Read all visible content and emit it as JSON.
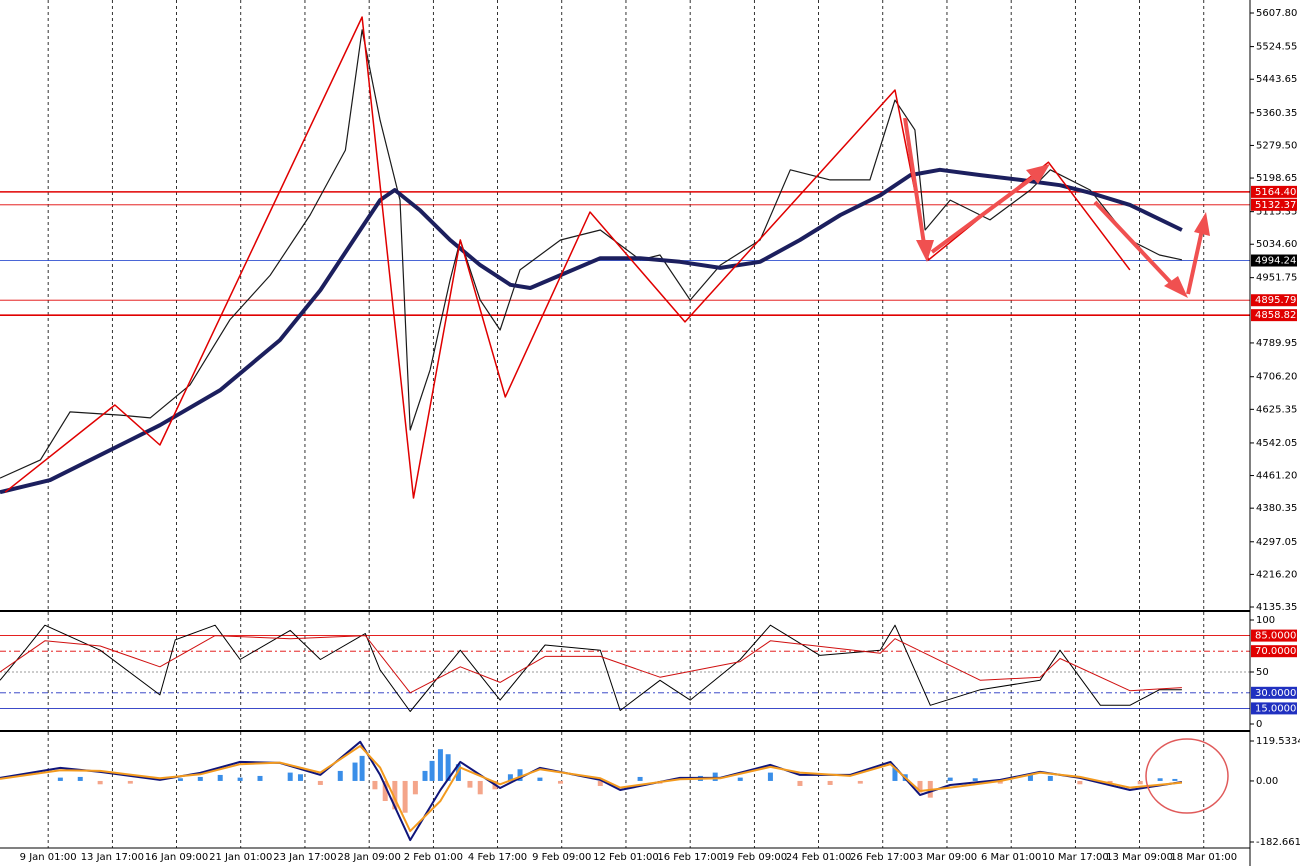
{
  "chart_data": [
    {
      "type": "line",
      "ylim": [
        4135.35,
        5607.8
      ],
      "yticks": [
        {
          "value": 5607.8,
          "label": "5607.80"
        },
        {
          "value": 5524.55,
          "label": "5524.55"
        },
        {
          "value": 5443.65,
          "label": "5443.65"
        },
        {
          "value": 5360.35,
          "label": "5360.35"
        },
        {
          "value": 5279.5,
          "label": "5279.50"
        },
        {
          "value": 5198.65,
          "label": "5198.65"
        },
        {
          "value": 5115.35,
          "label": "5115.35"
        },
        {
          "value": 5034.6,
          "label": "5034.60"
        },
        {
          "value": 4951.75,
          "label": "4951.75"
        },
        {
          "value": 4789.95,
          "label": "4789.95"
        },
        {
          "value": 4706.2,
          "label": "4706.20"
        },
        {
          "value": 4625.35,
          "label": "4625.35"
        },
        {
          "value": 4542.05,
          "label": "4542.05"
        },
        {
          "value": 4461.2,
          "label": "4461.20"
        },
        {
          "value": 4380.35,
          "label": "4380.35"
        },
        {
          "value": 4297.05,
          "label": "4297.05"
        },
        {
          "value": 4216.2,
          "label": "4216.20"
        },
        {
          "value": 4135.35,
          "label": "4135.35"
        }
      ],
      "levels": [
        {
          "value": 5164.4,
          "label": "5164.40",
          "color": "#e00000"
        },
        {
          "value": 5132.37,
          "label": "5132.37",
          "color": "#e00000"
        },
        {
          "value": 4994.24,
          "label": "4994.24",
          "color": "#3050d0"
        },
        {
          "value": 4895.79,
          "label": "4895.79",
          "color": "#e00000"
        },
        {
          "value": 4858.82,
          "label": "4858.82",
          "color": "#e00000"
        }
      ],
      "series": [
        {
          "color": "#1a1a1a",
          "width": 1.2,
          "x": [
            -0.75,
            -0.12,
            0.34,
            1.12,
            1.59,
            2.21,
            2.83,
            3.46,
            4.08,
            4.63,
            4.89,
            5.17,
            5.48,
            5.64,
            5.95,
            6.26,
            6.42,
            6.73,
            7.04,
            7.35,
            7.98,
            8.6,
            9.22,
            9.53,
            10.0,
            10.47,
            11.09,
            11.56,
            12.18,
            12.8,
            13.19,
            13.5,
            13.66,
            14.05,
            14.67,
            15.3,
            15.61,
            16.23,
            16.85,
            17.31,
            17.66
          ],
          "values": [
            4455,
            4500,
            4619,
            4611,
            4604,
            4686,
            4847,
            4958,
            5107,
            5268,
            5566,
            5342,
            5144,
            4574,
            4723,
            4946,
            5045,
            4896,
            4822,
            4971,
            5045,
            5070,
            4996,
            5008,
            4896,
            4983,
            5045,
            5219,
            5194,
            5194,
            5392,
            5318,
            5070,
            5144,
            5095,
            5169,
            5219,
            5169,
            5045,
            5008,
            4996
          ]
        },
        {
          "color": "#1c1f5e",
          "width": 4,
          "x": [
            -0.75,
            0.03,
            0.81,
            1.74,
            2.68,
            3.61,
            4.24,
            4.86,
            5.17,
            5.4,
            5.79,
            6.26,
            6.73,
            7.2,
            7.51,
            7.98,
            8.6,
            9.22,
            9.84,
            10.47,
            11.09,
            11.71,
            12.34,
            12.96,
            13.43,
            13.89,
            14.52,
            15.14,
            15.76,
            16.23,
            16.85,
            17.66
          ],
          "values": [
            4420,
            4450,
            4512,
            4586,
            4673,
            4797,
            4921,
            5070,
            5144,
            5169,
            5119,
            5045,
            4983,
            4934,
            4926,
            4958,
            5000,
            5000,
            4991,
            4976,
            4991,
            5045,
            5107,
            5156,
            5206,
            5219,
            5206,
            5194,
            5181,
            5162,
            5132,
            5070
          ]
        },
        {
          "color": "#e00000",
          "width": 1.5,
          "x": [
            -0.67,
            1.04,
            1.74,
            4.89,
            5.69,
            6.42,
            7.12,
            8.44,
            9.92,
            13.19,
            13.71,
            15.58,
            16.85
          ],
          "values": [
            4420,
            4636,
            4537,
            5598,
            4405.5,
            5045,
            4656,
            5114.5,
            4842,
            5417,
            4995.5,
            5238,
            4971
          ]
        }
      ]
    },
    {
      "type": "line",
      "ylim": [
        0,
        100
      ],
      "yticks": [
        100,
        50,
        0
      ],
      "levels": [
        {
          "value": 85,
          "label": "85.0000",
          "color": "#e00000",
          "dash": "none"
        },
        {
          "value": 70,
          "label": "70.0000",
          "color": "#e00000",
          "dash": "6 3 2 3"
        },
        {
          "value": 30,
          "label": "30.0000",
          "color": "#2030c0",
          "dash": "6 3 2 3"
        },
        {
          "value": 15,
          "label": "15.0000",
          "color": "#2030c0",
          "dash": "none"
        }
      ],
      "series": [
        {
          "color": "#000000",
          "width": 1,
          "x": [
            -0.75,
            -0.36,
            -0.05,
            0.81,
            1.74,
            1.98,
            2.6,
            2.99,
            3.77,
            4.24,
            4.94,
            5.17,
            5.64,
            6.42,
            7.04,
            7.74,
            8.6,
            8.91,
            9.53,
            10.0,
            10.78,
            11.25,
            12.02,
            12.96,
            13.19,
            13.74,
            14.52,
            15.45,
            15.76,
            16.39,
            16.85,
            17.31,
            17.66
          ],
          "values": [
            42,
            71,
            95,
            71,
            28,
            81,
            95,
            62,
            90,
            62,
            87,
            52,
            12,
            71,
            23,
            76,
            71,
            13,
            42,
            23,
            62,
            95,
            66,
            71,
            95,
            18,
            33,
            42,
            71,
            18,
            18,
            33,
            33
          ]
        },
        {
          "color": "#d01010",
          "width": 1,
          "x": [
            -0.75,
            -0.05,
            0.81,
            1.74,
            2.6,
            3.77,
            4.94,
            5.64,
            6.42,
            7.04,
            7.74,
            8.6,
            9.53,
            10.78,
            11.25,
            12.96,
            13.19,
            14.52,
            15.45,
            15.76,
            16.85,
            17.66
          ],
          "values": [
            50,
            80,
            75,
            55,
            85,
            82,
            85,
            30,
            55,
            40,
            65,
            65,
            45,
            60,
            80,
            68,
            82,
            42,
            45,
            63,
            32,
            35
          ]
        }
      ]
    },
    {
      "type": "combo",
      "ylim": [
        -182.6615,
        119.5334
      ],
      "yticks": [
        119.5334,
        {
          "value": 0,
          "label": "0.00"
        },
        -182.6615
      ],
      "xlim": [
        -0.75,
        18.72
      ],
      "xticks": [
        {
          "value": 0,
          "label": "9 Jan 01:00"
        },
        {
          "value": 1,
          "label": "13 Jan 17:00"
        },
        {
          "value": 2,
          "label": "16 Jan 09:00"
        },
        {
          "value": 3,
          "label": "21 Jan 01:00"
        },
        {
          "value": 4,
          "label": "23 Jan 17:00"
        },
        {
          "value": 5,
          "label": "28 Jan 09:00"
        },
        {
          "value": 6,
          "label": "2 Feb 01:00"
        },
        {
          "value": 7,
          "label": "4 Feb 17:00"
        },
        {
          "value": 8,
          "label": "9 Feb 09:00"
        },
        {
          "value": 9,
          "label": "12 Feb 01:00"
        },
        {
          "value": 10,
          "label": "16 Feb 17:00"
        },
        {
          "value": 11,
          "label": "19 Feb 09:00"
        },
        {
          "value": 12,
          "label": "24 Feb 01:00"
        },
        {
          "value": 13,
          "label": "26 Feb 17:00"
        },
        {
          "value": 14,
          "label": "3 Mar 09:00"
        },
        {
          "value": 15,
          "label": "6 Mar 01:00"
        },
        {
          "value": 16,
          "label": "10 Mar 17:00"
        },
        {
          "value": 17,
          "label": "13 Mar 09:00"
        },
        {
          "value": 18,
          "label": "18 Mar 01:00"
        }
      ],
      "histogram": {
        "color": "#3a8ee8",
        "negative_color": "#f4a58a",
        "x": [
          0.19,
          0.5,
          0.81,
          1.28,
          2.06,
          2.37,
          2.68,
          2.99,
          3.3,
          3.77,
          3.93,
          4.24,
          4.55,
          4.78,
          4.89,
          5.09,
          5.25,
          5.4,
          5.56,
          5.72,
          5.87,
          5.98,
          6.11,
          6.23,
          6.39,
          6.57,
          6.73,
          6.96,
          7.2,
          7.35,
          7.66,
          7.98,
          8.6,
          9.22,
          9.53,
          10.16,
          10.39,
          10.78,
          11.25,
          11.71,
          12.18,
          12.65,
          13.19,
          13.35,
          13.58,
          13.74,
          14.05,
          14.44,
          14.83,
          15.3,
          15.61,
          16.07,
          16.54,
          17.01,
          17.32,
          17.55
        ],
        "values": [
          10,
          12,
          -10,
          -8,
          8,
          12,
          18,
          10,
          15,
          25,
          20,
          -12,
          30,
          55,
          75,
          -25,
          -60,
          -85,
          -95,
          -40,
          30,
          60,
          95,
          80,
          50,
          -20,
          -40,
          -25,
          20,
          35,
          10,
          -8,
          -15,
          12,
          -8,
          15,
          25,
          10,
          25,
          -15,
          -12,
          -8,
          40,
          20,
          -35,
          -50,
          10,
          8,
          -8,
          20,
          15,
          -10,
          -12,
          -10,
          8,
          6
        ]
      },
      "series": [
        {
          "color": "#10157a",
          "width": 2,
          "x": [
            -0.75,
            0.19,
            0.81,
            1.74,
            2.37,
            2.99,
            3.61,
            4.24,
            4.86,
            5.17,
            5.64,
            6.11,
            6.42,
            7.04,
            7.66,
            8.6,
            8.91,
            9.84,
            10.47,
            11.25,
            11.71,
            12.49,
            13.12,
            13.58,
            14.05,
            14.83,
            15.45,
            16.07,
            16.85,
            17.66
          ],
          "values": [
            9,
            39,
            27,
            3,
            24,
            57,
            54,
            18,
            117,
            18,
            -177,
            -27,
            57,
            -21,
            39,
            3,
            -27,
            9,
            9,
            48,
            18,
            18,
            57,
            -42,
            -12,
            3,
            27,
            9,
            -27,
            -3
          ]
        },
        {
          "color": "#f39a1e",
          "width": 2,
          "x": [
            -0.75,
            0.19,
            0.81,
            1.74,
            2.37,
            2.99,
            3.61,
            4.24,
            4.86,
            5.17,
            5.64,
            6.11,
            6.42,
            7.04,
            7.66,
            8.6,
            8.91,
            9.84,
            10.47,
            11.25,
            11.71,
            12.49,
            13.12,
            13.58,
            14.05,
            14.83,
            15.45,
            16.07,
            16.85,
            17.66
          ],
          "values": [
            6,
            32,
            30,
            8,
            20,
            50,
            55,
            25,
            105,
            40,
            -150,
            -60,
            40,
            -10,
            35,
            8,
            -20,
            5,
            8,
            42,
            25,
            15,
            50,
            -30,
            -20,
            0,
            25,
            12,
            -20,
            -5
          ]
        }
      ]
    }
  ]
}
